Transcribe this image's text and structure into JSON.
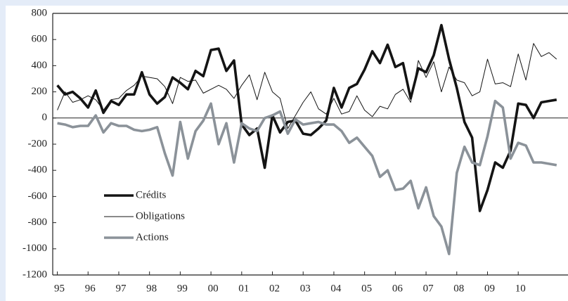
{
  "chart_data": {
    "type": "line",
    "x": [
      1995,
      1995.25,
      1995.5,
      1995.75,
      1996,
      1996.25,
      1996.5,
      1996.75,
      1997,
      1997.25,
      1997.5,
      1997.75,
      1998,
      1998.25,
      1998.5,
      1998.75,
      1999,
      1999.25,
      1999.5,
      1999.75,
      2000,
      2000.25,
      2000.5,
      2000.75,
      2001,
      2001.25,
      2001.5,
      2001.75,
      2002,
      2002.25,
      2002.5,
      2002.75,
      2003,
      2003.25,
      2003.5,
      2003.75,
      2004,
      2004.25,
      2004.5,
      2004.75,
      2005,
      2005.25,
      2005.5,
      2005.75,
      2006,
      2006.25,
      2006.5,
      2006.75,
      2007,
      2007.25,
      2007.5,
      2007.75,
      2008,
      2008.25,
      2008.5,
      2008.75,
      2009,
      2009.25,
      2009.5,
      2009.75,
      2010,
      2010.25,
      2010.5,
      2010.75,
      2011,
      2011.25
    ],
    "series": [
      {
        "name": "Crédits",
        "color": "#141414",
        "line_width": 3.6,
        "values": [
          250,
          180,
          200,
          150,
          80,
          210,
          40,
          130,
          100,
          180,
          180,
          350,
          180,
          110,
          160,
          310,
          270,
          220,
          360,
          320,
          520,
          530,
          360,
          440,
          -50,
          -130,
          -80,
          -380,
          20,
          -110,
          -30,
          -20,
          -120,
          -130,
          -80,
          -20,
          230,
          80,
          230,
          260,
          370,
          510,
          420,
          560,
          390,
          420,
          150,
          380,
          350,
          480,
          710,
          450,
          230,
          -30,
          -150,
          -710,
          -550,
          -340,
          -380,
          -250,
          110,
          100,
          0,
          120,
          130,
          140
        ]
      },
      {
        "name": "Obligations",
        "color": "#141414",
        "line_width": 1,
        "values": [
          60,
          200,
          120,
          140,
          170,
          140,
          60,
          140,
          150,
          210,
          250,
          320,
          310,
          300,
          240,
          110,
          310,
          280,
          290,
          190,
          220,
          250,
          220,
          150,
          250,
          330,
          140,
          350,
          200,
          150,
          -80,
          20,
          120,
          200,
          70,
          30,
          150,
          30,
          50,
          170,
          60,
          10,
          90,
          70,
          180,
          220,
          120,
          440,
          310,
          430,
          200,
          390,
          290,
          270,
          170,
          200,
          450,
          260,
          270,
          240,
          490,
          290,
          570,
          470,
          500,
          450
        ]
      },
      {
        "name": "Actions",
        "color": "#8b9299",
        "line_width": 3.6,
        "values": [
          -40,
          -50,
          -70,
          -60,
          -60,
          20,
          -110,
          -40,
          -60,
          -60,
          -90,
          -100,
          -90,
          -70,
          -270,
          -440,
          -30,
          -310,
          -100,
          -20,
          110,
          -200,
          -40,
          -340,
          -40,
          -80,
          -100,
          0,
          20,
          50,
          -120,
          -10,
          -50,
          -40,
          -30,
          -50,
          -50,
          -100,
          -190,
          -150,
          -220,
          -290,
          -450,
          -400,
          -550,
          -540,
          -480,
          -690,
          -530,
          -750,
          -830,
          -1040,
          -420,
          -220,
          -340,
          -360,
          -140,
          130,
          80,
          -310,
          -190,
          -210,
          -340,
          -340,
          -350,
          -360
        ]
      }
    ],
    "xlim": [
      1994.85,
      2011.62
    ],
    "xticks": [
      {
        "value": 1995,
        "label": "95"
      },
      {
        "value": 1996,
        "label": "96"
      },
      {
        "value": 1997,
        "label": "97"
      },
      {
        "value": 1998,
        "label": "98"
      },
      {
        "value": 1999,
        "label": "99"
      },
      {
        "value": 2000,
        "label": "00"
      },
      {
        "value": 2001,
        "label": "01"
      },
      {
        "value": 2002,
        "label": "02"
      },
      {
        "value": 2003,
        "label": "03"
      },
      {
        "value": 2004,
        "label": "04"
      },
      {
        "value": 2005,
        "label": "05"
      },
      {
        "value": 2006,
        "label": "06"
      },
      {
        "value": 2007,
        "label": "07"
      },
      {
        "value": 2008,
        "label": "08"
      },
      {
        "value": 2009,
        "label": "09"
      },
      {
        "value": 2010,
        "label": "10"
      }
    ],
    "ylim": [
      -1200,
      800
    ],
    "yticks": [
      800,
      600,
      400,
      200,
      0,
      -200,
      -400,
      -600,
      -800,
      -1000,
      -1200
    ],
    "grid": false
  }
}
